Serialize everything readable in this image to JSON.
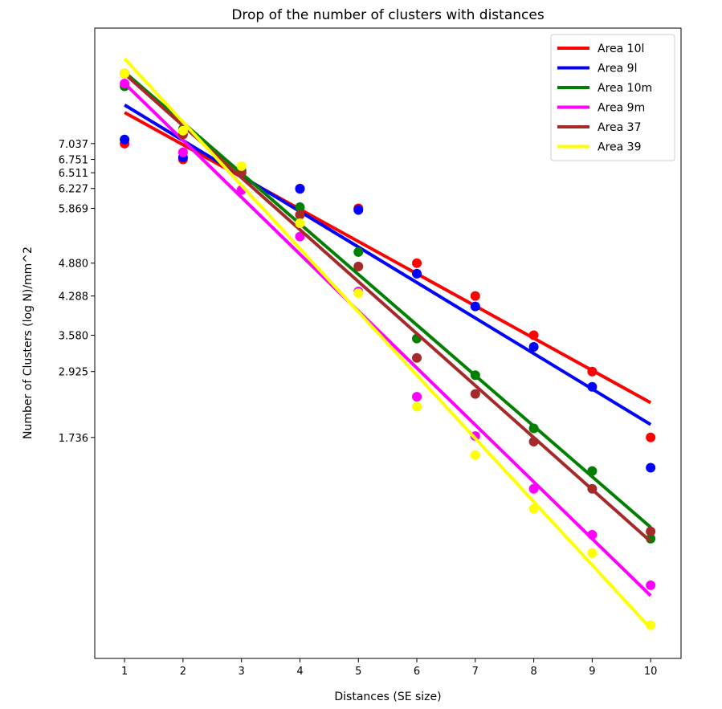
{
  "chart_data": {
    "type": "scatter",
    "title": "Drop of the number of clusters with distances",
    "xlabel": "Distances (SE size)",
    "ylabel": "Number of Clusters (log N)/mm^2",
    "xlim": [
      0.49,
      10.52
    ],
    "ylim": [
      -2.25,
      9.12
    ],
    "xticks": [
      1,
      2,
      3,
      4,
      5,
      6,
      7,
      8,
      9,
      10
    ],
    "yticks": [
      7.037,
      6.751,
      6.511,
      6.227,
      5.869,
      4.88,
      4.288,
      3.58,
      2.925,
      1.736
    ],
    "ytick_labels": [
      "7.037",
      "6.751",
      "6.511",
      "6.227",
      "5.869",
      "4.880",
      "4.288",
      "3.580",
      "2.925",
      "1.736"
    ],
    "grid": false,
    "legend_position": "top-right",
    "fit_lines": "linear regression per series",
    "x": [
      1,
      2,
      3,
      4,
      5,
      6,
      7,
      8,
      9,
      10
    ],
    "series": [
      {
        "name": "Area 10l",
        "color": "#ff0000",
        "values": [
          7.037,
          6.751,
          6.511,
          6.227,
          5.869,
          4.88,
          4.288,
          3.58,
          2.925,
          1.736
        ]
      },
      {
        "name": "Area 9l",
        "color": "#0000ff",
        "values": [
          7.11,
          6.79,
          6.55,
          6.22,
          5.84,
          4.69,
          4.1,
          3.37,
          2.65,
          1.19
        ]
      },
      {
        "name": "Area 10m",
        "color": "#008000",
        "values": [
          8.07,
          7.3,
          6.55,
          5.89,
          5.08,
          3.52,
          2.86,
          1.9,
          1.13,
          -0.09
        ]
      },
      {
        "name": "Area 9m",
        "color": "#ff00ff",
        "values": [
          8.12,
          6.88,
          6.2,
          5.36,
          4.37,
          2.47,
          1.76,
          0.81,
          -0.02,
          -0.93
        ]
      },
      {
        "name": "Area 37",
        "color": "#a52a2a",
        "values": [
          8.3,
          7.2,
          6.51,
          5.75,
          4.82,
          3.17,
          2.52,
          1.66,
          0.81,
          0.04
        ]
      },
      {
        "name": "Area 39",
        "color": "#ffff00",
        "values": [
          8.3,
          7.27,
          6.63,
          5.6,
          4.34,
          2.29,
          1.42,
          0.45,
          -0.35,
          -1.65
        ]
      }
    ]
  }
}
